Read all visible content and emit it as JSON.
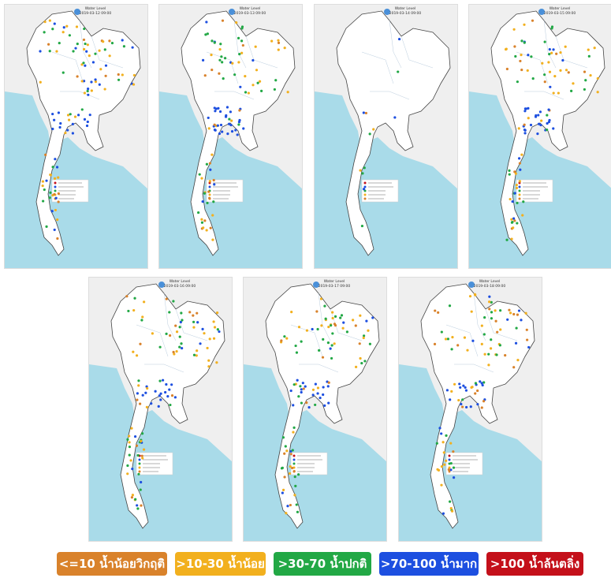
{
  "panels": [
    {
      "title": "Water Level",
      "date": "2019-03-12 09:00"
    },
    {
      "title": "Water Level",
      "date": "2019-03-13 09:00"
    },
    {
      "title": "Water Level",
      "date": "2019-03-14 09:00"
    },
    {
      "title": "Water Level",
      "date": "2019-03-15 09:00"
    },
    {
      "title": "Water Level",
      "date": "2019-03-16 09:00"
    },
    {
      "title": "Water Level",
      "date": "2019-03-17 09:00"
    },
    {
      "title": "Water Level",
      "date": "2019-03-18 09:00"
    }
  ],
  "legend": [
    {
      "label": "<=10 น้ำน้อยวิกฤติ",
      "color": "#d9822b"
    },
    {
      "label": ">10-30 น้ำน้อย",
      "color": "#f2b01e"
    },
    {
      "label": ">30-70 น้ำปกติ",
      "color": "#22a845"
    },
    {
      "label": ">70-100 น้ำมาก",
      "color": "#1d4fe0"
    },
    {
      "label": ">100 น้ำล้นตลิ่ง",
      "color": "#c4101a"
    }
  ]
}
